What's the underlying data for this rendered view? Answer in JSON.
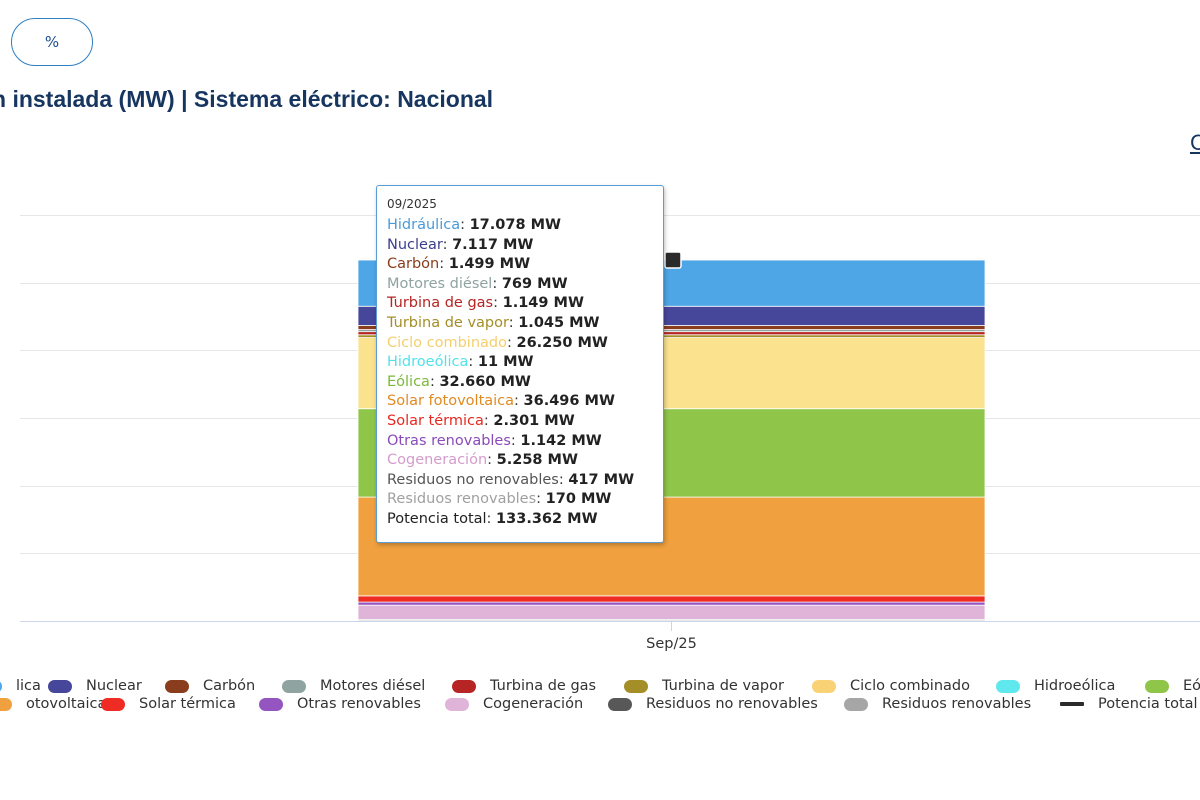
{
  "toolbar": {
    "percent_label": "%"
  },
  "page": {
    "title": "n instalada (MW) | Sistema eléctrico: Nacional",
    "corner_link": "C"
  },
  "chart_data": {
    "type": "bar",
    "stacked": true,
    "categories": [
      "Sep/25"
    ],
    "ylim": [
      0,
      150000
    ],
    "grid": true,
    "legend_placement": "bottom",
    "series": [
      {
        "name": "Hidráulica",
        "values": [
          17078
        ],
        "color": "#4ea6e6"
      },
      {
        "name": "Nuclear",
        "values": [
          7117
        ],
        "color": "#46469a"
      },
      {
        "name": "Carbón",
        "values": [
          1499
        ],
        "color": "#8a3d1c"
      },
      {
        "name": "Motores diésel",
        "values": [
          769
        ],
        "color": "#8fa3a0"
      },
      {
        "name": "Turbina de gas",
        "values": [
          1149
        ],
        "color": "#b62424"
      },
      {
        "name": "Turbina de vapor",
        "values": [
          1045
        ],
        "color": "#a48e28"
      },
      {
        "name": "Ciclo combinado",
        "values": [
          26250
        ],
        "color": "#fbe28f"
      },
      {
        "name": "Hidroeólica",
        "values": [
          11
        ],
        "color": "#5fe8ee"
      },
      {
        "name": "Eólica",
        "values": [
          32660
        ],
        "color": "#8fc64a"
      },
      {
        "name": "Solar fotovoltaica",
        "values": [
          36496
        ],
        "color": "#f0a03e"
      },
      {
        "name": "Solar térmica",
        "values": [
          2301
        ],
        "color": "#ee2c24"
      },
      {
        "name": "Otras renovables",
        "values": [
          1142
        ],
        "color": "#9555c0"
      },
      {
        "name": "Cogeneración",
        "values": [
          5258
        ],
        "color": "#e0b4d8"
      },
      {
        "name": "Residuos no renovables",
        "values": [
          417
        ],
        "color": "#585858"
      },
      {
        "name": "Residuos renovables",
        "values": [
          170
        ],
        "color": "#a6a6a6"
      }
    ],
    "total_series": {
      "name": "Potencia total",
      "values": [
        133362
      ],
      "color": "#2b2b2b"
    },
    "tooltip": {
      "date": "09/2025",
      "rows": [
        {
          "name": "Hidráulica",
          "value": "17.078 MW",
          "color": "#4a9ad8"
        },
        {
          "name": "Nuclear",
          "value": "7.117 MW",
          "color": "#3e3e8e"
        },
        {
          "name": "Carbón",
          "value": "1.499 MW",
          "color": "#8a3d1c"
        },
        {
          "name": "Motores diésel",
          "value": "769 MW",
          "color": "#8fa3a0"
        },
        {
          "name": "Turbina de gas",
          "value": "1.149 MW",
          "color": "#b62424"
        },
        {
          "name": "Turbina de vapor",
          "value": "1.045 MW",
          "color": "#a48e28"
        },
        {
          "name": "Ciclo combinado",
          "value": "26.250 MW",
          "color": "#f4cf6c"
        },
        {
          "name": "Hidroeólica",
          "value": "11 MW",
          "color": "#52e2ea"
        },
        {
          "name": "Eólica",
          "value": "32.660 MW",
          "color": "#7bb83a"
        },
        {
          "name": "Solar fotovoltaica",
          "value": "36.496 MW",
          "color": "#e08a22"
        },
        {
          "name": "Solar térmica",
          "value": "2.301 MW",
          "color": "#e82820"
        },
        {
          "name": "Otras renovables",
          "value": "1.142 MW",
          "color": "#8a4bb8"
        },
        {
          "name": "Cogeneración",
          "value": "5.258 MW",
          "color": "#d49ccc"
        },
        {
          "name": "Residuos no renovables",
          "value": "417 MW",
          "color": "#555555"
        },
        {
          "name": "Residuos renovables",
          "value": "170 MW",
          "color": "#a0a0a0"
        },
        {
          "name": "Potencia total",
          "value": "133.362 MW",
          "color": "#222222"
        }
      ]
    },
    "legend": [
      {
        "label": "lica",
        "color": "#4ea6e6"
      },
      {
        "label": "Nuclear",
        "color": "#46469a"
      },
      {
        "label": "Carbón",
        "color": "#8a3d1c"
      },
      {
        "label": "Motores diésel",
        "color": "#8fa3a0"
      },
      {
        "label": "Turbina de gas",
        "color": "#b62424"
      },
      {
        "label": "Turbina de vapor",
        "color": "#a48e28"
      },
      {
        "label": "Ciclo combinado",
        "color": "#f8d275"
      },
      {
        "label": "Hidroeólica",
        "color": "#5fe8ee"
      },
      {
        "label": "Eó",
        "color": "#8fc64a"
      },
      {
        "label": "otovoltaica",
        "color": "#f0a03e"
      },
      {
        "label": "Solar térmica",
        "color": "#ee2c24"
      },
      {
        "label": "Otras renovables",
        "color": "#9555c0"
      },
      {
        "label": "Cogeneración",
        "color": "#e0b4d8"
      },
      {
        "label": "Residuos no renovables",
        "color": "#585858"
      },
      {
        "label": "Residuos renovables",
        "color": "#a6a6a6"
      },
      {
        "label": "Potencia total",
        "color": "#2b2b2b",
        "line": true
      }
    ]
  }
}
